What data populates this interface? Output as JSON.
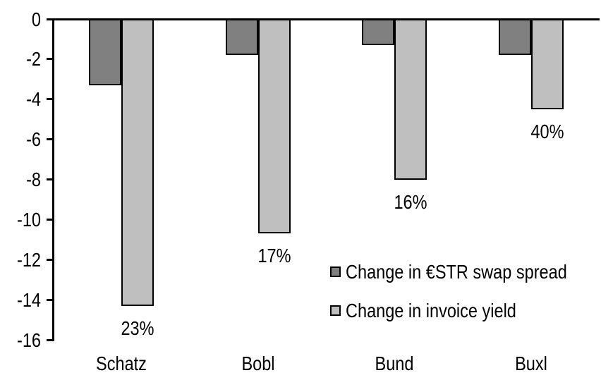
{
  "chart_data": {
    "type": "bar",
    "title": "",
    "categories": [
      "Schatz",
      "Bobl",
      "Bund",
      "Buxl"
    ],
    "series": [
      {
        "name": "Change in €STR swap spread",
        "color": "#808080",
        "values": [
          -3.3,
          -1.8,
          -1.3,
          -1.8
        ]
      },
      {
        "name": "Change in invoice yield",
        "color": "#bfbfbf",
        "values": [
          -14.3,
          -10.7,
          -8.0,
          -4.5
        ],
        "point_labels": [
          "23%",
          "17%",
          "16%",
          "40%"
        ]
      }
    ],
    "xlabel": "",
    "ylabel": "",
    "yaxis": {
      "min": -16,
      "max": 0,
      "tick_step": 2,
      "ticks": [
        0,
        -2,
        -4,
        -6,
        -8,
        -10,
        -12,
        -14,
        -16
      ]
    },
    "grid": false,
    "legend_position": "inside-right",
    "bar_outline_color": "#000000",
    "axis_color": "#000000",
    "background_color": "#ffffff"
  }
}
